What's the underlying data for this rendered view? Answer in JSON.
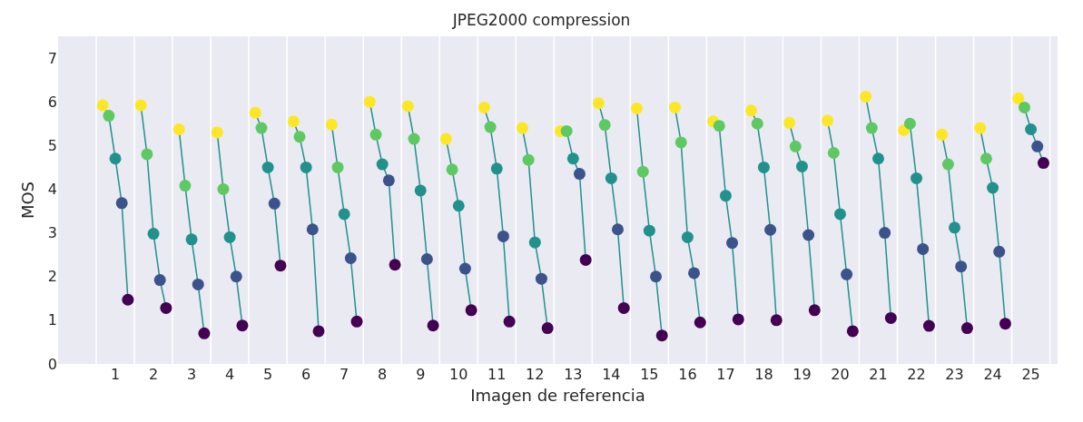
{
  "chart_data": {
    "type": "line",
    "title": "JPEG2000 compression",
    "xlabel": "Imagen de referencia",
    "ylabel": "MOS",
    "xlim": [
      -0.5,
      25.7
    ],
    "ylim": [
      0,
      7.5
    ],
    "yticks": [
      0,
      1,
      2,
      3,
      4,
      5,
      6,
      7
    ],
    "xticks": [
      1,
      2,
      3,
      4,
      5,
      6,
      7,
      8,
      9,
      10,
      11,
      12,
      13,
      14,
      15,
      16,
      17,
      18,
      19,
      20,
      21,
      22,
      23,
      24,
      25,
      {
        "value": 0.5,
        "label": null
      },
      {
        "value": 1.5,
        "label": null
      },
      {
        "value": 2.5,
        "label": null
      },
      {
        "value": 3.5,
        "label": null
      },
      {
        "value": 4.5,
        "label": null
      },
      {
        "value": 5.5,
        "label": null
      },
      {
        "value": 6.5,
        "label": null
      },
      {
        "value": 7.5,
        "label": null
      },
      {
        "value": 8.5,
        "label": null
      },
      {
        "value": 9.5,
        "label": null
      },
      {
        "value": 10.5,
        "label": null
      },
      {
        "value": 11.5,
        "label": null
      },
      {
        "value": 12.5,
        "label": null
      },
      {
        "value": 13.5,
        "label": null
      },
      {
        "value": 14.5,
        "label": null
      },
      {
        "value": 15.5,
        "label": null
      },
      {
        "value": 16.5,
        "label": null
      },
      {
        "value": 17.5,
        "label": null
      },
      {
        "value": 18.5,
        "label": null
      },
      {
        "value": 19.5,
        "label": null
      },
      {
        "value": 20.5,
        "label": null
      },
      {
        "value": 21.5,
        "label": null
      },
      {
        "value": 22.5,
        "label": null
      },
      {
        "value": 23.5,
        "label": null
      },
      {
        "value": 24.5,
        "label": null
      },
      {
        "value": 25.5,
        "label": null
      }
    ],
    "grid": "x",
    "marker": "circle",
    "line_style": "solid",
    "series": [
      {
        "color": "#21918c",
        "colors": [
          "#fde725",
          "#5ec962",
          "#21918c",
          "#3b528b",
          "#440154"
        ],
        "x": [
          0.67,
          0.83,
          1,
          1.17,
          1.33
        ],
        "values": [
          5.92,
          5.68,
          4.7,
          3.68,
          1.47
        ]
      },
      {
        "color": "#21918c",
        "colors": [
          "#fde725",
          "#5ec962",
          "#21918c",
          "#3b528b",
          "#440154"
        ],
        "x": [
          1.67,
          1.83,
          2,
          2.17,
          2.33
        ],
        "values": [
          5.92,
          4.8,
          2.98,
          1.92,
          1.28
        ]
      },
      {
        "color": "#21918c",
        "colors": [
          "#fde725",
          "#5ec962",
          "#21918c",
          "#3b528b",
          "#440154"
        ],
        "x": [
          2.67,
          2.83,
          3,
          3.17,
          3.33
        ],
        "values": [
          5.37,
          4.08,
          2.85,
          1.82,
          0.7
        ]
      },
      {
        "color": "#21918c",
        "colors": [
          "#fde725",
          "#5ec962",
          "#21918c",
          "#3b528b",
          "#440154"
        ],
        "x": [
          3.67,
          3.83,
          4,
          4.17,
          4.33
        ],
        "values": [
          5.3,
          4,
          2.9,
          2,
          0.88
        ]
      },
      {
        "color": "#21918c",
        "colors": [
          "#fde725",
          "#5ec962",
          "#21918c",
          "#3b528b",
          "#440154"
        ],
        "x": [
          4.67,
          4.83,
          5,
          5.17,
          5.33
        ],
        "values": [
          5.75,
          5.4,
          4.5,
          3.67,
          2.25
        ]
      },
      {
        "color": "#21918c",
        "colors": [
          "#fde725",
          "#5ec962",
          "#21918c",
          "#3b528b",
          "#440154"
        ],
        "x": [
          5.67,
          5.83,
          6,
          6.17,
          6.33
        ],
        "values": [
          5.55,
          5.2,
          4.5,
          3.08,
          0.75
        ]
      },
      {
        "color": "#21918c",
        "colors": [
          "#fde725",
          "#5ec962",
          "#21918c",
          "#3b528b",
          "#440154"
        ],
        "x": [
          6.67,
          6.83,
          7,
          7.17,
          7.33
        ],
        "values": [
          5.48,
          4.5,
          3.43,
          2.42,
          0.97
        ]
      },
      {
        "color": "#21918c",
        "colors": [
          "#fde725",
          "#5ec962",
          "#21918c",
          "#3b528b",
          "#440154"
        ],
        "x": [
          7.67,
          7.83,
          8,
          8.17,
          8.33
        ],
        "values": [
          6,
          5.25,
          4.57,
          4.2,
          2.27
        ]
      },
      {
        "color": "#21918c",
        "colors": [
          "#fde725",
          "#5ec962",
          "#21918c",
          "#3b528b",
          "#440154"
        ],
        "x": [
          8.67,
          8.83,
          9,
          9.17,
          9.33
        ],
        "values": [
          5.9,
          5.15,
          3.97,
          2.4,
          0.88
        ]
      },
      {
        "color": "#21918c",
        "colors": [
          "#fde725",
          "#5ec962",
          "#21918c",
          "#3b528b",
          "#440154"
        ],
        "x": [
          9.67,
          9.83,
          10,
          10.17,
          10.33
        ],
        "values": [
          5.15,
          4.45,
          3.62,
          2.18,
          1.23
        ]
      },
      {
        "color": "#21918c",
        "colors": [
          "#fde725",
          "#5ec962",
          "#21918c",
          "#3b528b",
          "#440154"
        ],
        "x": [
          10.67,
          10.83,
          11,
          11.17,
          11.33
        ],
        "values": [
          5.87,
          5.42,
          4.47,
          2.92,
          0.97
        ]
      },
      {
        "color": "#21918c",
        "colors": [
          "#fde725",
          "#5ec962",
          "#21918c",
          "#3b528b",
          "#440154"
        ],
        "x": [
          11.67,
          11.83,
          12,
          12.17,
          12.33
        ],
        "values": [
          5.4,
          4.67,
          2.78,
          1.95,
          0.82
        ]
      },
      {
        "color": "#21918c",
        "colors": [
          "#fde725",
          "#5ec962",
          "#21918c",
          "#3b528b",
          "#440154"
        ],
        "x": [
          12.67,
          12.83,
          13,
          13.17,
          13.33
        ],
        "values": [
          5.33,
          5.33,
          4.7,
          4.35,
          2.38
        ]
      },
      {
        "color": "#21918c",
        "colors": [
          "#fde725",
          "#5ec962",
          "#21918c",
          "#3b528b",
          "#440154"
        ],
        "x": [
          13.67,
          13.83,
          14,
          14.17,
          14.33
        ],
        "values": [
          5.97,
          5.47,
          4.25,
          3.08,
          1.28
        ]
      },
      {
        "color": "#21918c",
        "colors": [
          "#fde725",
          "#5ec962",
          "#21918c",
          "#3b528b",
          "#440154"
        ],
        "x": [
          14.67,
          14.83,
          15,
          15.17,
          15.33
        ],
        "values": [
          5.85,
          4.4,
          3.05,
          2,
          0.65
        ]
      },
      {
        "color": "#21918c",
        "colors": [
          "#fde725",
          "#5ec962",
          "#21918c",
          "#3b528b",
          "#440154"
        ],
        "x": [
          15.67,
          15.83,
          16,
          16.17,
          16.33
        ],
        "values": [
          5.87,
          5.07,
          2.9,
          2.08,
          0.95
        ]
      },
      {
        "color": "#21918c",
        "colors": [
          "#fde725",
          "#5ec962",
          "#21918c",
          "#3b528b",
          "#440154"
        ],
        "x": [
          16.67,
          16.83,
          17,
          17.17,
          17.33
        ],
        "values": [
          5.55,
          5.45,
          3.85,
          2.77,
          1.02
        ]
      },
      {
        "color": "#21918c",
        "colors": [
          "#fde725",
          "#5ec962",
          "#21918c",
          "#3b528b",
          "#440154"
        ],
        "x": [
          17.67,
          17.83,
          18,
          18.17,
          18.33
        ],
        "values": [
          5.8,
          5.5,
          4.5,
          3.07,
          1
        ]
      },
      {
        "color": "#21918c",
        "colors": [
          "#fde725",
          "#5ec962",
          "#21918c",
          "#3b528b",
          "#440154"
        ],
        "x": [
          18.67,
          18.83,
          19,
          19.17,
          19.33
        ],
        "values": [
          5.52,
          4.98,
          4.52,
          2.95,
          1.23
        ]
      },
      {
        "color": "#21918c",
        "colors": [
          "#fde725",
          "#5ec962",
          "#21918c",
          "#3b528b",
          "#440154"
        ],
        "x": [
          19.67,
          19.83,
          20,
          20.17,
          20.33
        ],
        "values": [
          5.57,
          4.83,
          3.43,
          2.05,
          0.75
        ]
      },
      {
        "color": "#21918c",
        "colors": [
          "#fde725",
          "#5ec962",
          "#21918c",
          "#3b528b",
          "#440154"
        ],
        "x": [
          20.67,
          20.83,
          21,
          21.17,
          21.33
        ],
        "values": [
          6.12,
          5.4,
          4.7,
          3,
          1.05
        ]
      },
      {
        "color": "#21918c",
        "colors": [
          "#fde725",
          "#5ec962",
          "#21918c",
          "#3b528b",
          "#440154"
        ],
        "x": [
          21.67,
          21.83,
          22,
          22.17,
          22.33
        ],
        "values": [
          5.35,
          5.5,
          4.25,
          2.63,
          0.87
        ]
      },
      {
        "color": "#21918c",
        "colors": [
          "#fde725",
          "#5ec962",
          "#21918c",
          "#3b528b",
          "#440154"
        ],
        "x": [
          22.67,
          22.83,
          23,
          23.17,
          23.33
        ],
        "values": [
          5.25,
          4.57,
          3.12,
          2.23,
          0.82
        ]
      },
      {
        "color": "#21918c",
        "colors": [
          "#fde725",
          "#5ec962",
          "#21918c",
          "#3b528b",
          "#440154"
        ],
        "x": [
          23.67,
          23.83,
          24,
          24.17,
          24.33
        ],
        "values": [
          5.4,
          4.7,
          4.03,
          2.57,
          0.92
        ]
      },
      {
        "color": "#21918c",
        "colors": [
          "#fde725",
          "#5ec962",
          "#21918c",
          "#3b528b",
          "#440154"
        ],
        "x": [
          24.67,
          24.83,
          25,
          25.17,
          25.33
        ],
        "values": [
          6.08,
          5.87,
          5.37,
          4.98,
          4.6
        ]
      }
    ]
  }
}
